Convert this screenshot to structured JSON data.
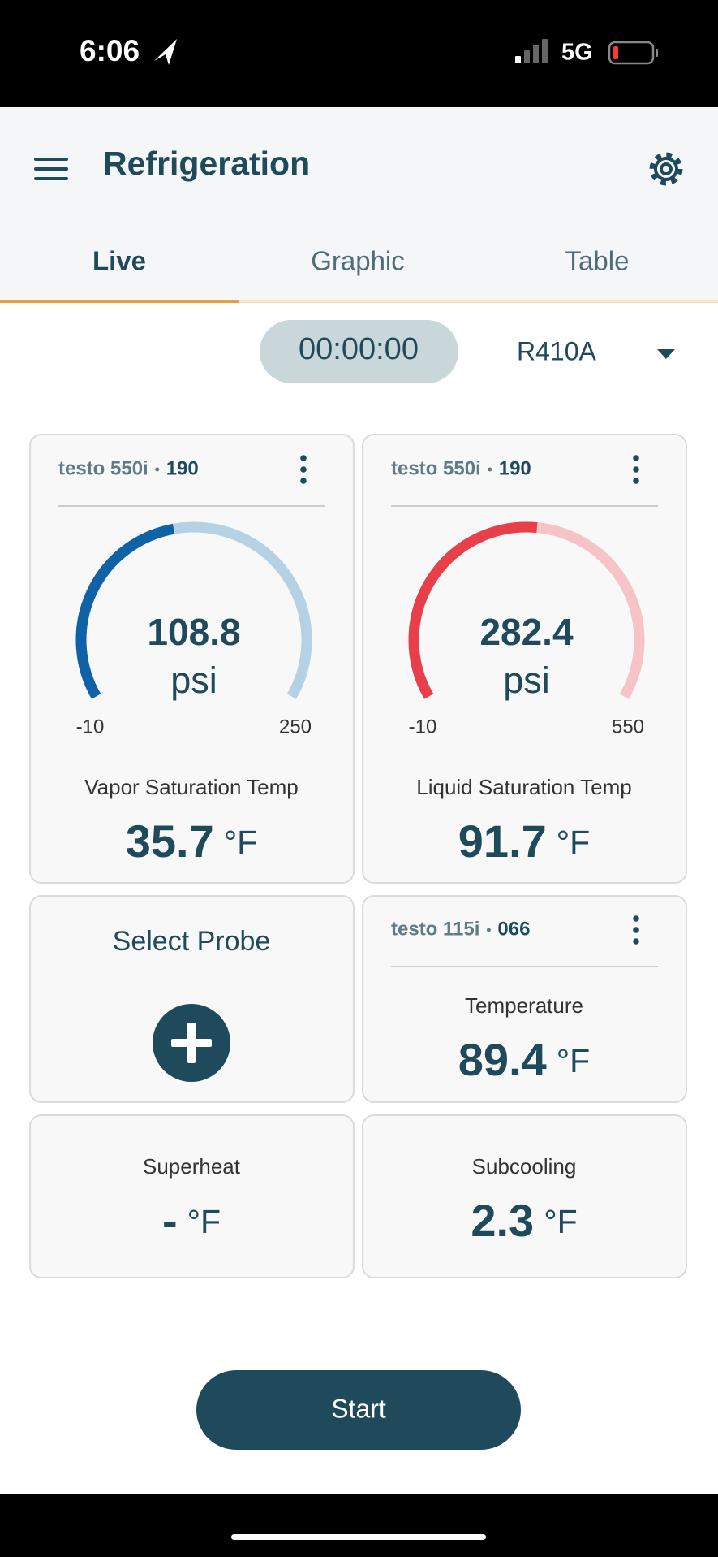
{
  "status_bar": {
    "time": "6:06",
    "network": "5G"
  },
  "header": {
    "title": "Refrigeration"
  },
  "tabs": [
    "Live",
    "Graphic",
    "Table"
  ],
  "timer": "00:00:00",
  "refrigerant": "R410A",
  "gauges": [
    {
      "device": "testo 550i",
      "id": "190",
      "value": 108.8,
      "unit": "psi",
      "min": -10,
      "max": 250,
      "label": "Vapor Saturation Temp",
      "temp": 35.7,
      "temp_unit": "°F",
      "color": "#0f62a6",
      "track": "#b5d2e5"
    },
    {
      "device": "testo 550i",
      "id": "190",
      "value": 282.4,
      "unit": "psi",
      "min": -10,
      "max": 550,
      "label": "Liquid Saturation Temp",
      "temp": 91.7,
      "temp_unit": "°F",
      "color": "#e8404b",
      "track": "#f6c3c6"
    }
  ],
  "probe": {
    "label": "Select Probe"
  },
  "temperature": {
    "device": "testo 115i",
    "id": "066",
    "label": "Temperature",
    "value": 89.4,
    "unit": "°F"
  },
  "superheat": {
    "label": "Superheat",
    "value": "-",
    "unit": "°F"
  },
  "subcooling": {
    "label": "Subcooling",
    "value": 2.3,
    "unit": "°F"
  },
  "button": "Start"
}
